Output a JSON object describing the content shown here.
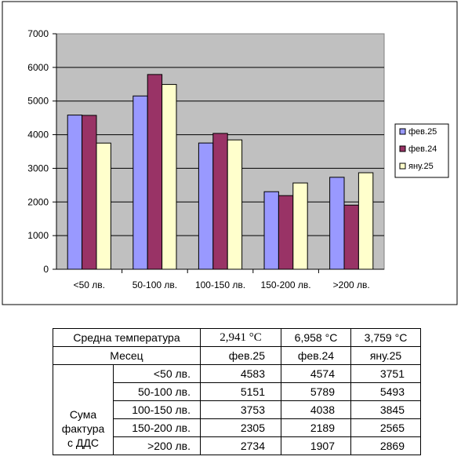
{
  "chart_data": {
    "type": "bar",
    "categories": [
      "<50 лв.",
      "50-100 лв.",
      "100-150 лв.",
      "150-200 лв.",
      ">200 лв."
    ],
    "series": [
      {
        "name": "фев.25",
        "values": [
          4583,
          5151,
          3753,
          2305,
          2734
        ],
        "color": "#9999ff"
      },
      {
        "name": "фев.24",
        "values": [
          4574,
          5789,
          4038,
          2189,
          1907
        ],
        "color": "#993366"
      },
      {
        "name": "яну.25",
        "values": [
          3751,
          5493,
          3845,
          2565,
          2869
        ],
        "color": "#ffffcc"
      }
    ],
    "ylim": [
      0,
      7000
    ],
    "yticks": [
      "0",
      "1000",
      "2000",
      "3000",
      "4000",
      "5000",
      "6000",
      "7000"
    ],
    "grid": true,
    "legend_position": "right",
    "plot_background": "#c0c0c0"
  },
  "table": {
    "row_temp_label": "Средна температура",
    "temps": [
      "2,941 °C",
      "6,958 °C",
      "3,759 °C"
    ],
    "row_month_label": "Месец",
    "months": [
      "фев.25",
      "фев.24",
      "яну.25"
    ],
    "side_label_lines": [
      "Сума",
      "фактура",
      "с ДДС"
    ],
    "rows": [
      {
        "label": "<50 лв.",
        "values": [
          "4583",
          "4574",
          "3751"
        ]
      },
      {
        "label": "50-100 лв.",
        "values": [
          "5151",
          "5789",
          "5493"
        ]
      },
      {
        "label": "100-150 лв.",
        "values": [
          "3753",
          "4038",
          "3845"
        ]
      },
      {
        "label": "150-200 лв.",
        "values": [
          "2305",
          "2189",
          "2565"
        ]
      },
      {
        "label": ">200 лв.",
        "values": [
          "2734",
          "1907",
          "2869"
        ]
      }
    ]
  }
}
